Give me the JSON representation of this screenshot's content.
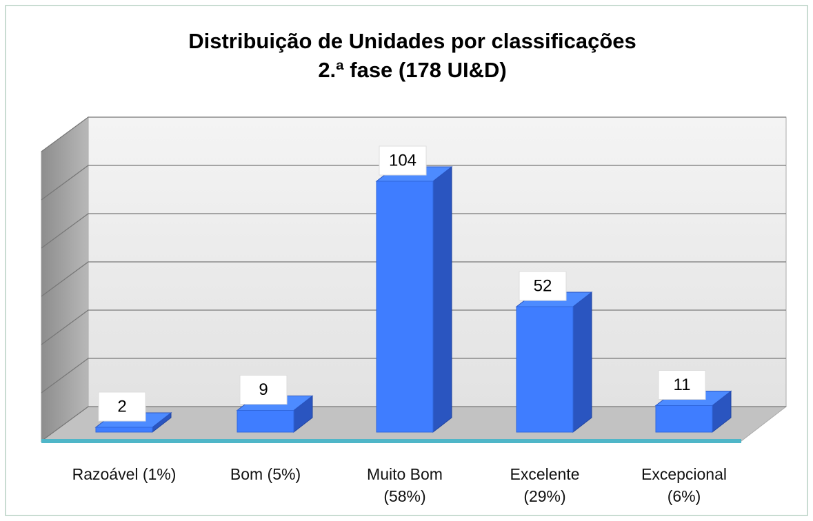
{
  "chart_data": {
    "type": "bar3d",
    "title": "Distribuição de Unidades por classificações",
    "subtitle": "2.ª fase (178 UI&D)",
    "categories": [
      "Razoável (1%)",
      "Bom (5%)",
      "Muito Bom\n(58%)",
      "Excelente\n(29%)",
      "Excepcional\n(6%)"
    ],
    "values": [
      2,
      9,
      104,
      52,
      11
    ],
    "color": "#3f7dff",
    "ylim": [
      0,
      120
    ],
    "yticks": [
      0,
      20,
      40,
      60,
      80,
      100,
      120
    ],
    "grid": true
  }
}
